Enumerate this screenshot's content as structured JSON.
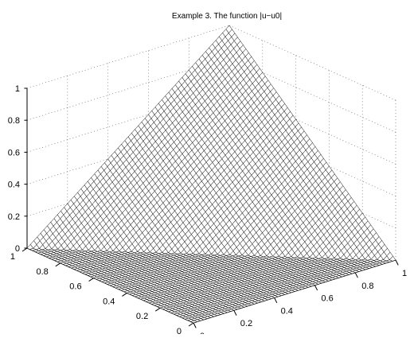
{
  "chart_data": {
    "type": "surface",
    "title": "Example 3. The function |u−u0|",
    "x_axis": {
      "ticks": [
        "0",
        "0.2",
        "0.4",
        "0.6",
        "0.8",
        "1"
      ],
      "range": [
        0,
        1
      ]
    },
    "y_axis": {
      "ticks": [
        "0",
        "0.2",
        "0.4",
        "0.6",
        "0.8",
        "1"
      ],
      "range": [
        0,
        1
      ]
    },
    "z_axis": {
      "ticks": [
        "0",
        "0.2",
        "0.4",
        "0.6",
        "0.8",
        "1"
      ],
      "range": [
        0,
        1
      ]
    },
    "grid": true,
    "surface": {
      "description_shape": "peak of height 1 at corner (x=1,y=1), zero on the half-plane x+y<=1",
      "samples": [
        {
          "x": 0,
          "y": 0,
          "z": 0
        },
        {
          "x": 1,
          "y": 0,
          "z": 0
        },
        {
          "x": 0,
          "y": 1,
          "z": 0
        },
        {
          "x": 0.5,
          "y": 0.5,
          "z": 0
        },
        {
          "x": 1,
          "y": 0.5,
          "z": 0.5
        },
        {
          "x": 0.5,
          "y": 1,
          "z": 0.5
        },
        {
          "x": 1,
          "y": 1,
          "z": 1
        }
      ]
    },
    "colors": {
      "mesh": "#000000",
      "face": "#ffffff",
      "grid": "#555555"
    }
  }
}
